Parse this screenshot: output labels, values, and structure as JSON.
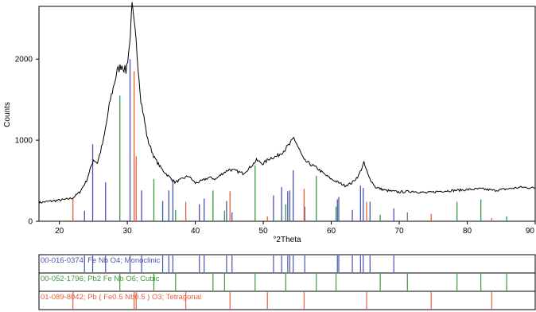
{
  "chart_data": {
    "type": "line",
    "title": "",
    "xlabel": "°2Theta",
    "ylabel": "Counts",
    "xlim": [
      17,
      90
    ],
    "ylim": [
      0,
      2650
    ],
    "x_ticks": [
      "20",
      "30",
      "40",
      "50",
      "60",
      "70",
      "80",
      "90"
    ],
    "y_ticks": [
      "0",
      "1000",
      "2000"
    ],
    "grid": false,
    "line_color": "#000000",
    "pattern": [
      {
        "x": 17,
        "y": 230
      },
      {
        "x": 19,
        "y": 250
      },
      {
        "x": 21,
        "y": 270
      },
      {
        "x": 22,
        "y": 290
      },
      {
        "x": 23,
        "y": 360
      },
      {
        "x": 24,
        "y": 500
      },
      {
        "x": 25,
        "y": 760
      },
      {
        "x": 25.6,
        "y": 720
      },
      {
        "x": 26.5,
        "y": 1000
      },
      {
        "x": 27.5,
        "y": 1500
      },
      {
        "x": 28.5,
        "y": 1850
      },
      {
        "x": 29.2,
        "y": 1930
      },
      {
        "x": 29.8,
        "y": 1850
      },
      {
        "x": 30.3,
        "y": 2150
      },
      {
        "x": 30.7,
        "y": 2640
      },
      {
        "x": 31.3,
        "y": 2200
      },
      {
        "x": 32,
        "y": 1500
      },
      {
        "x": 33,
        "y": 1000
      },
      {
        "x": 34,
        "y": 780
      },
      {
        "x": 35,
        "y": 650
      },
      {
        "x": 36,
        "y": 560
      },
      {
        "x": 37,
        "y": 480
      },
      {
        "x": 38,
        "y": 520
      },
      {
        "x": 39,
        "y": 560
      },
      {
        "x": 40,
        "y": 470
      },
      {
        "x": 41,
        "y": 500
      },
      {
        "x": 42,
        "y": 540
      },
      {
        "x": 43,
        "y": 520
      },
      {
        "x": 44,
        "y": 590
      },
      {
        "x": 45,
        "y": 640
      },
      {
        "x": 46,
        "y": 620
      },
      {
        "x": 47,
        "y": 590
      },
      {
        "x": 48,
        "y": 660
      },
      {
        "x": 49,
        "y": 750
      },
      {
        "x": 50,
        "y": 710
      },
      {
        "x": 51,
        "y": 780
      },
      {
        "x": 52,
        "y": 800
      },
      {
        "x": 53,
        "y": 870
      },
      {
        "x": 54,
        "y": 960
      },
      {
        "x": 54.5,
        "y": 1030
      },
      {
        "x": 55.2,
        "y": 900
      },
      {
        "x": 56,
        "y": 750
      },
      {
        "x": 57,
        "y": 700
      },
      {
        "x": 58,
        "y": 650
      },
      {
        "x": 59,
        "y": 580
      },
      {
        "x": 60,
        "y": 520
      },
      {
        "x": 61,
        "y": 480
      },
      {
        "x": 62,
        "y": 440
      },
      {
        "x": 63,
        "y": 470
      },
      {
        "x": 64,
        "y": 560
      },
      {
        "x": 64.8,
        "y": 720
      },
      {
        "x": 65.5,
        "y": 550
      },
      {
        "x": 66.5,
        "y": 420
      },
      {
        "x": 68,
        "y": 380
      },
      {
        "x": 70,
        "y": 360
      },
      {
        "x": 72,
        "y": 370
      },
      {
        "x": 74,
        "y": 350
      },
      {
        "x": 76,
        "y": 370
      },
      {
        "x": 78,
        "y": 380
      },
      {
        "x": 80,
        "y": 390
      },
      {
        "x": 82,
        "y": 400
      },
      {
        "x": 84,
        "y": 380
      },
      {
        "x": 86,
        "y": 400
      },
      {
        "x": 88,
        "y": 420
      },
      {
        "x": 90,
        "y": 410
      }
    ],
    "phases": [
      {
        "label": "00-016-0374; Fe Nb O4; Monoclinic",
        "color": "#4a55b0",
        "peaks": [
          {
            "x": 23.7,
            "y": 130
          },
          {
            "x": 24.9,
            "y": 950
          },
          {
            "x": 26.8,
            "y": 480
          },
          {
            "x": 30.4,
            "y": 2000
          },
          {
            "x": 32.1,
            "y": 380
          },
          {
            "x": 35.2,
            "y": 250
          },
          {
            "x": 36.1,
            "y": 380
          },
          {
            "x": 36.7,
            "y": 520
          },
          {
            "x": 40.6,
            "y": 210
          },
          {
            "x": 41.3,
            "y": 280
          },
          {
            "x": 44.6,
            "y": 250
          },
          {
            "x": 45.4,
            "y": 110
          },
          {
            "x": 51.5,
            "y": 320
          },
          {
            "x": 52.7,
            "y": 420
          },
          {
            "x": 53.6,
            "y": 370
          },
          {
            "x": 53.9,
            "y": 380
          },
          {
            "x": 54.4,
            "y": 630
          },
          {
            "x": 56.1,
            "y": 180
          },
          {
            "x": 60.9,
            "y": 270
          },
          {
            "x": 61.1,
            "y": 300
          },
          {
            "x": 63.1,
            "y": 140
          },
          {
            "x": 64.3,
            "y": 440
          },
          {
            "x": 64.7,
            "y": 410
          },
          {
            "x": 65.7,
            "y": 240
          },
          {
            "x": 69.2,
            "y": 160
          }
        ]
      },
      {
        "label": "00-052-1796; Pb2 Fe Nb O6; Cubic",
        "color": "#3a9a3a",
        "peaks": [
          {
            "x": 28.9,
            "y": 1550
          },
          {
            "x": 33.9,
            "y": 520
          },
          {
            "x": 37.1,
            "y": 140
          },
          {
            "x": 42.6,
            "y": 380
          },
          {
            "x": 44.3,
            "y": 130
          },
          {
            "x": 48.8,
            "y": 690
          },
          {
            "x": 53.3,
            "y": 210
          },
          {
            "x": 57.8,
            "y": 560
          },
          {
            "x": 60.7,
            "y": 180
          },
          {
            "x": 67.2,
            "y": 80
          },
          {
            "x": 71.2,
            "y": 110
          },
          {
            "x": 78.5,
            "y": 240
          },
          {
            "x": 82.0,
            "y": 270
          },
          {
            "x": 85.8,
            "y": 60
          }
        ]
      },
      {
        "label": "01-089-8042; Pb ( Fe0.5 Nb0.5 ) O3; Tetragonal",
        "color": "#e8603a",
        "peaks": [
          {
            "x": 22.0,
            "y": 290
          },
          {
            "x": 31.0,
            "y": 1850
          },
          {
            "x": 31.3,
            "y": 800
          },
          {
            "x": 38.6,
            "y": 240
          },
          {
            "x": 45.1,
            "y": 370
          },
          {
            "x": 50.6,
            "y": 60
          },
          {
            "x": 56.0,
            "y": 400
          },
          {
            "x": 65.2,
            "y": 240
          },
          {
            "x": 74.7,
            "y": 90
          },
          {
            "x": 83.6,
            "y": 40
          }
        ]
      }
    ]
  }
}
